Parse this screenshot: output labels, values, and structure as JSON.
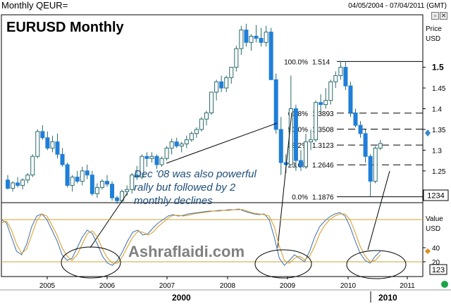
{
  "header": {
    "instrument": "Monthly QEUR=",
    "date_range": "04/05/2004 - 07/04/2011 (GMT)"
  },
  "chart_data": [
    {
      "type": "candlestick",
      "title": "EURUSD Monthly",
      "axis_title": "Price",
      "axis_unit": "USD",
      "y_ticks": [
        "1.5",
        "1.45",
        "1.4",
        "1.35",
        "1.3",
        "1.25",
        "1.2"
      ],
      "ylim": [
        1.175,
        1.625
      ],
      "last_price_box": "1234",
      "candles": [
        [
          1.228,
          1.24,
          1.205,
          1.208
        ],
        [
          1.208,
          1.225,
          1.2,
          1.221
        ],
        [
          1.221,
          1.235,
          1.21,
          1.215
        ],
        [
          1.215,
          1.232,
          1.205,
          1.228
        ],
        [
          1.228,
          1.245,
          1.22,
          1.24
        ],
        [
          1.24,
          1.29,
          1.235,
          1.285
        ],
        [
          1.285,
          1.35,
          1.28,
          1.345
        ],
        [
          1.345,
          1.36,
          1.325,
          1.33
        ],
        [
          1.33,
          1.345,
          1.3,
          1.305
        ],
        [
          1.305,
          1.335,
          1.295,
          1.32
        ],
        [
          1.32,
          1.34,
          1.28,
          1.29
        ],
        [
          1.29,
          1.305,
          1.26,
          1.265
        ],
        [
          1.265,
          1.27,
          1.21,
          1.215
        ],
        [
          1.215,
          1.24,
          1.2,
          1.235
        ],
        [
          1.235,
          1.25,
          1.22,
          1.225
        ],
        [
          1.225,
          1.26,
          1.215,
          1.25
        ],
        [
          1.25,
          1.265,
          1.23,
          1.24
        ],
        [
          1.24,
          1.25,
          1.19,
          1.195
        ],
        [
          1.195,
          1.22,
          1.185,
          1.21
        ],
        [
          1.21,
          1.23,
          1.205,
          1.225
        ],
        [
          1.225,
          1.24,
          1.212,
          1.218
        ],
        [
          1.218,
          1.225,
          1.178,
          1.185
        ],
        [
          1.185,
          1.19,
          1.17,
          1.178
        ],
        [
          1.178,
          1.205,
          1.172,
          1.2
        ],
        [
          1.2,
          1.215,
          1.19,
          1.205
        ],
        [
          1.205,
          1.245,
          1.195,
          1.24
        ],
        [
          1.24,
          1.262,
          1.228,
          1.235
        ],
        [
          1.235,
          1.29,
          1.23,
          1.285
        ],
        [
          1.285,
          1.295,
          1.26,
          1.28
        ],
        [
          1.28,
          1.295,
          1.27,
          1.285
        ],
        [
          1.285,
          1.29,
          1.255,
          1.265
        ],
        [
          1.265,
          1.285,
          1.26,
          1.28
        ],
        [
          1.28,
          1.31,
          1.275,
          1.305
        ],
        [
          1.305,
          1.328,
          1.29,
          1.32
        ],
        [
          1.32,
          1.33,
          1.305,
          1.31
        ],
        [
          1.31,
          1.32,
          1.295,
          1.315
        ],
        [
          1.315,
          1.335,
          1.305,
          1.325
        ],
        [
          1.325,
          1.345,
          1.32,
          1.34
        ],
        [
          1.34,
          1.355,
          1.33,
          1.35
        ],
        [
          1.35,
          1.38,
          1.345,
          1.375
        ],
        [
          1.375,
          1.395,
          1.36,
          1.39
        ],
        [
          1.39,
          1.44,
          1.385,
          1.44
        ],
        [
          1.44,
          1.47,
          1.42,
          1.465
        ],
        [
          1.465,
          1.48,
          1.44,
          1.45
        ],
        [
          1.45,
          1.48,
          1.44,
          1.475
        ],
        [
          1.475,
          1.5,
          1.46,
          1.5
        ],
        [
          1.5,
          1.552,
          1.49,
          1.545
        ],
        [
          1.545,
          1.6,
          1.53,
          1.59
        ],
        [
          1.59,
          1.605,
          1.55,
          1.56
        ],
        [
          1.56,
          1.58,
          1.54,
          1.575
        ],
        [
          1.575,
          1.602,
          1.56,
          1.57
        ],
        [
          1.57,
          1.595,
          1.55,
          1.56
        ],
        [
          1.56,
          1.6,
          1.55,
          1.585
        ],
        [
          1.585,
          1.595,
          1.47,
          1.47
        ],
        [
          1.47,
          1.485,
          1.34,
          1.35
        ],
        [
          1.35,
          1.38,
          1.24,
          1.27
        ],
        [
          1.27,
          1.29,
          1.245,
          1.265
        ],
        [
          1.265,
          1.48,
          1.265,
          1.4
        ],
        [
          1.4,
          1.41,
          1.25,
          1.275
        ],
        [
          1.275,
          1.3,
          1.25,
          1.26
        ],
        [
          1.26,
          1.34,
          1.255,
          1.32
        ],
        [
          1.32,
          1.35,
          1.3,
          1.325
        ],
        [
          1.325,
          1.42,
          1.32,
          1.415
        ],
        [
          1.415,
          1.435,
          1.39,
          1.41
        ],
        [
          1.41,
          1.45,
          1.4,
          1.42
        ],
        [
          1.42,
          1.47,
          1.41,
          1.465
        ],
        [
          1.465,
          1.49,
          1.45,
          1.48
        ],
        [
          1.48,
          1.515,
          1.47,
          1.5
        ],
        [
          1.5,
          1.514,
          1.445,
          1.455
        ],
        [
          1.455,
          1.465,
          1.38,
          1.39
        ],
        [
          1.39,
          1.4,
          1.355,
          1.36
        ],
        [
          1.36,
          1.37,
          1.33,
          1.34
        ],
        [
          1.34,
          1.35,
          1.27,
          1.285
        ],
        [
          1.285,
          1.29,
          1.188,
          1.225
        ],
        [
          1.225,
          1.31,
          1.22,
          1.305
        ],
        [
          1.305,
          1.325,
          1.3,
          1.316
        ]
      ],
      "fibonacci": [
        {
          "label": "100.0%",
          "value_text": "1.514",
          "value": 1.514
        },
        {
          "label": "61.8%",
          "value_text": "1.3893",
          "value": 1.3893
        },
        {
          "label": "50.0%",
          "value_text": "1.3508",
          "value": 1.3508
        },
        {
          "label": "38.2%",
          "value_text": "1.3123",
          "value": 1.3123
        },
        {
          "label": "23.6%",
          "value_text": "1.2646",
          "value": 1.2646
        },
        {
          "label": "0.0%",
          "value_text": "1.1876",
          "value": 1.1876
        }
      ],
      "annotation": "Dec '08 was also powerful rally but followed by 2 monthly declines",
      "watermark": "Ashraflaidi.com"
    },
    {
      "type": "line",
      "axis_title": "Value",
      "axis_unit": "USD",
      "y_ticks": [
        "40",
        "20"
      ],
      "ylim": [
        0,
        100
      ],
      "last_value_box": "123",
      "reference_levels": [
        80,
        20
      ],
      "series": [
        {
          "values": [
            80,
            75,
            55,
            35,
            30,
            45,
            70,
            85,
            88,
            80,
            65,
            50,
            30,
            22,
            25,
            40,
            55,
            65,
            60,
            45,
            28,
            18,
            15,
            22,
            35,
            50,
            62,
            65,
            58,
            60,
            68,
            75,
            80,
            85,
            87,
            85,
            86,
            88,
            89,
            90,
            91,
            92,
            92,
            93,
            93,
            94,
            94,
            95,
            92,
            90,
            88,
            87,
            88,
            80,
            55,
            25,
            15,
            22,
            30,
            25,
            20,
            35,
            55,
            70,
            78,
            84,
            88,
            90,
            85,
            70,
            50,
            32,
            22,
            18,
            28,
            35
          ]
        },
        {
          "values": [
            75,
            78,
            65,
            45,
            32,
            38,
            58,
            78,
            88,
            85,
            72,
            58,
            40,
            28,
            22,
            30,
            45,
            60,
            64,
            55,
            38,
            25,
            18,
            18,
            28,
            42,
            55,
            63,
            62,
            58,
            62,
            70,
            76,
            82,
            86,
            86,
            85,
            86,
            88,
            89,
            90,
            91,
            92,
            92,
            93,
            93,
            94,
            94,
            94,
            91,
            89,
            88,
            87,
            85,
            70,
            42,
            22,
            18,
            25,
            28,
            23,
            28,
            42,
            60,
            72,
            80,
            85,
            88,
            88,
            80,
            62,
            42,
            28,
            20,
            22,
            30
          ]
        }
      ]
    }
  ],
  "time_axis": {
    "years": [
      "2005",
      "2006",
      "2007",
      "2008",
      "2009",
      "2010",
      "2011"
    ],
    "bands": [
      "2000",
      "2010"
    ]
  },
  "colors": {
    "bull_fill": "#ffffff",
    "bear_fill": "#1f7fd8",
    "candle_stroke": "#2a6a6a",
    "oscillator_a": "#3f6faa",
    "oscillator_b": "#d59a1f",
    "reference_line": "#c9a33a",
    "annotation_text": "#1f4e79",
    "marker_diamond_price": "#3a86c8",
    "marker_diamond_osc": "#e08a1e",
    "status_dot": "#1aa44a"
  },
  "icons": [
    "restore-icon",
    "close-icon",
    "status-dot-icon"
  ]
}
